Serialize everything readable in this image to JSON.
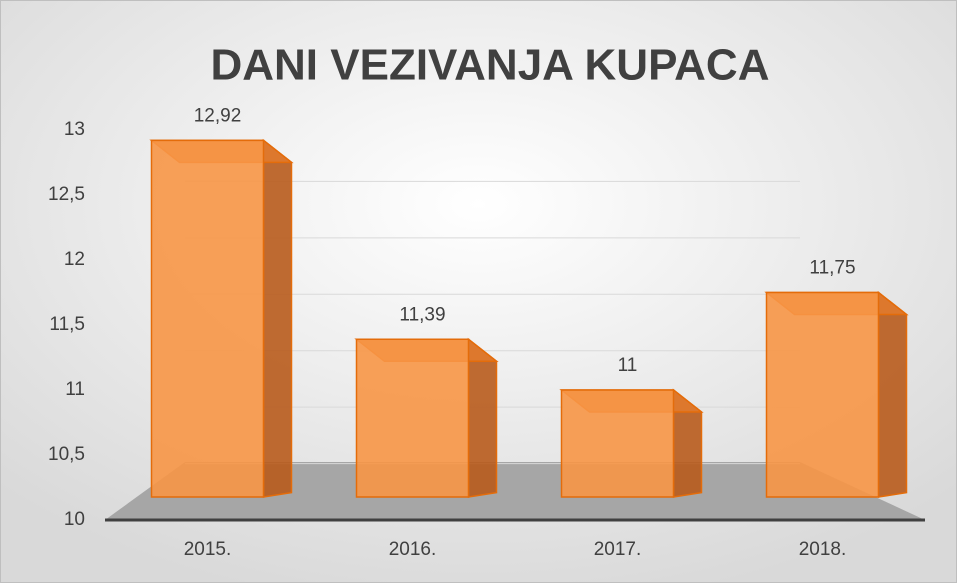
{
  "chart_data": {
    "type": "bar3d",
    "title": "DANI VEZIVANJA KUPACA",
    "categories": [
      "2015.",
      "2016.",
      "2017.",
      "2018."
    ],
    "values": [
      12.92,
      11.39,
      11,
      11.75
    ],
    "value_labels": [
      "12,92",
      "11,39",
      "11",
      "11,75"
    ],
    "color": "#f79646",
    "ylim": [
      10,
      13
    ],
    "yticks": [
      10,
      {
        "value": 10.5,
        "label": "10,5"
      },
      11,
      {
        "value": 11.5,
        "label": "11,5"
      },
      12,
      {
        "value": 12.5,
        "label": "12,5"
      },
      13
    ],
    "grid": true
  }
}
